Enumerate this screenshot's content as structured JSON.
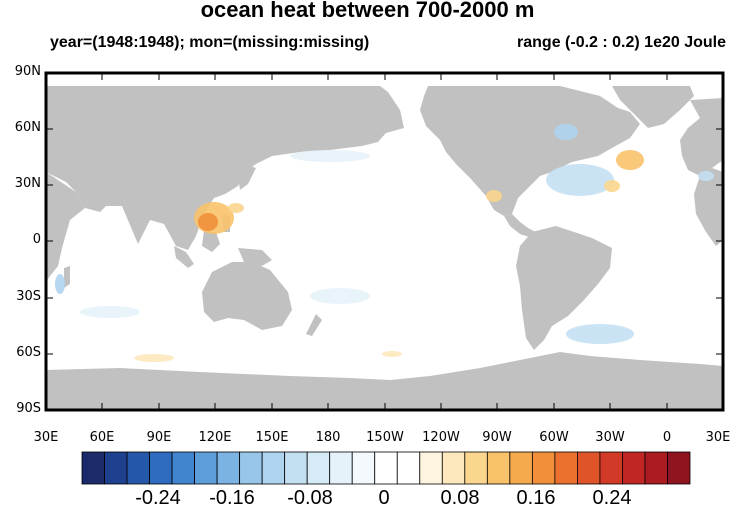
{
  "title": "ocean heat between 700-2000 m",
  "subtitle_left": "year=(1948:1948); mon=(missing:missing)",
  "subtitle_right": "range (-0.2 : 0.2) 1e20 Joule",
  "lat_labels": [
    "90N",
    "60N",
    "30N",
    "0",
    "30S",
    "60S",
    "90S"
  ],
  "lon_labels": [
    "30E",
    "60E",
    "90E",
    "120E",
    "150E",
    "180",
    "150W",
    "120W",
    "90W",
    "60W",
    "30W",
    "0",
    "30E"
  ],
  "colorbar": {
    "labels": [
      "-0.24",
      "-0.16",
      "-0.08",
      "0",
      "0.08",
      "0.16",
      "0.24"
    ],
    "colors": [
      "#1b2a6b",
      "#1f3f8f",
      "#2457a8",
      "#2f6bbf",
      "#4185cf",
      "#5c9dda",
      "#7bb3e3",
      "#97c6ea",
      "#aed4ef",
      "#c3e0f3",
      "#d6eaf7",
      "#e6f2fa",
      "#f3f9fd",
      "#ffffff",
      "#ffffff",
      "#fff4df",
      "#fde8bd",
      "#fbd68e",
      "#f8c26a",
      "#f5aa4e",
      "#f18f3b",
      "#ea722e",
      "#df5428",
      "#d13a26",
      "#c02724",
      "#ab1c22",
      "#8f1420"
    ]
  },
  "colors": {
    "land": "#c1c1c1",
    "ocean": "#ffffff",
    "frame": "#000000"
  }
}
